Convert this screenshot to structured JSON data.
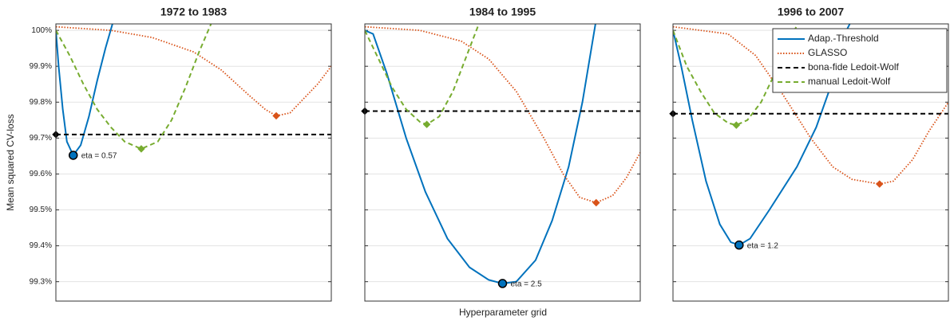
{
  "figure": {
    "ylabel": "Mean squared CV-loss",
    "xlabel": "Hyperparameter grid"
  },
  "chart_data": [
    {
      "type": "line",
      "title": "1972 to 1983",
      "xlim": [
        0,
        100
      ],
      "ylim": [
        99.246,
        100.018
      ],
      "yticks": [
        {
          "value": 99.3,
          "label": "99.3%"
        },
        {
          "value": 99.4,
          "label": "99.4%"
        },
        {
          "value": 99.5,
          "label": "99.5%"
        },
        {
          "value": 99.6,
          "label": "99.6%"
        },
        {
          "value": 99.7,
          "label": "99.7%"
        },
        {
          "value": 99.8,
          "label": "99.8%"
        },
        {
          "value": 99.9,
          "label": "99.9%"
        },
        {
          "value": 100,
          "label": "100%"
        }
      ],
      "grid": true,
      "series": [
        {
          "name": "Adap.-Threshold",
          "color": "#0072bd",
          "style": "solid",
          "x": [
            0,
            1,
            2.5,
            4,
            6.3,
            9,
            12,
            15,
            18,
            21
          ],
          "values": [
            100.0,
            99.9,
            99.78,
            99.69,
            99.652,
            99.68,
            99.76,
            99.86,
            99.95,
            100.03
          ]
        },
        {
          "name": "GLASSO",
          "color": "#d95319",
          "style": "dotted",
          "x": [
            0,
            20,
            35,
            50,
            60,
            70,
            76,
            80,
            85,
            90,
            95,
            100
          ],
          "values": [
            100.01,
            100.0,
            99.98,
            99.94,
            99.89,
            99.82,
            99.78,
            99.762,
            99.77,
            99.81,
            99.85,
            99.9
          ],
          "optimum_x": 80,
          "optimum": 99.762
        },
        {
          "name": "bona-fide Ledoit-Wolf",
          "color": "#000000",
          "style": "dashed",
          "value": 99.71
        },
        {
          "name": "manual Ledoit-Wolf",
          "color": "#77ac30",
          "style": "dashed",
          "x": [
            0,
            5,
            10,
            15,
            20,
            25,
            31,
            37,
            42,
            47,
            52,
            57
          ],
          "values": [
            100.0,
            99.93,
            99.85,
            99.78,
            99.73,
            99.69,
            99.67,
            99.69,
            99.75,
            99.84,
            99.94,
            100.03
          ],
          "optimum_x": 31,
          "optimum": 99.67
        }
      ],
      "annotation": {
        "text": "eta = 0.57",
        "x": 6.3,
        "y": 99.652
      }
    },
    {
      "type": "line",
      "title": "1984 to 1995",
      "xlim": [
        0,
        100
      ],
      "ylim": [
        99.246,
        100.018
      ],
      "yticks": [
        99.3,
        99.4,
        99.5,
        99.6,
        99.7,
        99.8,
        99.9,
        100
      ],
      "grid": true,
      "series": [
        {
          "name": "Adap.-Threshold",
          "color": "#0072bd",
          "style": "solid",
          "x": [
            0,
            3,
            8,
            15,
            22,
            30,
            38,
            45,
            50,
            55,
            62,
            68,
            74,
            79,
            84
          ],
          "values": [
            100.0,
            99.99,
            99.88,
            99.7,
            99.55,
            99.42,
            99.34,
            99.305,
            99.295,
            99.3,
            99.36,
            99.47,
            99.62,
            99.8,
            100.03
          ]
        },
        {
          "name": "GLASSO",
          "color": "#d95319",
          "style": "dotted",
          "x": [
            0,
            20,
            35,
            45,
            55,
            65,
            72,
            78,
            84,
            90,
            95,
            100
          ],
          "values": [
            100.01,
            100.0,
            99.97,
            99.92,
            99.83,
            99.7,
            99.6,
            99.535,
            99.52,
            99.54,
            99.59,
            99.66
          ],
          "optimum_x": 84,
          "optimum": 99.52
        },
        {
          "name": "bona-fide Ledoit-Wolf",
          "color": "#000000",
          "style": "dashed",
          "value": 99.775
        },
        {
          "name": "manual Ledoit-Wolf",
          "color": "#77ac30",
          "style": "dashed",
          "x": [
            0,
            5,
            10,
            15,
            20,
            22.5,
            27,
            32,
            37,
            42
          ],
          "values": [
            100.0,
            99.92,
            99.84,
            99.78,
            99.745,
            99.738,
            99.76,
            99.83,
            99.93,
            100.03
          ],
          "optimum_x": 22.5,
          "optimum": 99.738
        }
      ],
      "annotation": {
        "text": "eta = 2.5",
        "x": 50,
        "y": 99.295
      }
    },
    {
      "type": "line",
      "title": "1996 to 2007",
      "xlim": [
        0,
        100
      ],
      "ylim": [
        99.246,
        100.018
      ],
      "yticks": [
        99.3,
        99.4,
        99.5,
        99.6,
        99.7,
        99.8,
        99.9,
        100
      ],
      "grid": true,
      "legend": "upper right",
      "series": [
        {
          "name": "Adap.-Threshold",
          "color": "#0072bd",
          "style": "solid",
          "x": [
            0,
            3,
            7,
            12,
            17,
            21,
            24,
            28,
            35,
            45,
            52,
            58,
            63,
            65
          ],
          "values": [
            100.0,
            99.9,
            99.75,
            99.58,
            99.46,
            99.41,
            99.402,
            99.42,
            99.5,
            99.62,
            99.73,
            99.86,
            100.0,
            100.03
          ]
        },
        {
          "name": "GLASSO",
          "color": "#d95319",
          "style": "dotted",
          "x": [
            0,
            20,
            30,
            40,
            50,
            58,
            65,
            75,
            80,
            87,
            93,
            100
          ],
          "values": [
            100.01,
            99.99,
            99.93,
            99.82,
            99.7,
            99.62,
            99.585,
            99.572,
            99.58,
            99.64,
            99.72,
            99.8
          ],
          "optimum_x": 75,
          "optimum": 99.572
        },
        {
          "name": "bona-fide Ledoit-Wolf",
          "color": "#000000",
          "style": "dashed",
          "value": 99.768
        },
        {
          "name": "manual Ledoit-Wolf",
          "color": "#77ac30",
          "style": "dashed",
          "x": [
            0,
            5,
            10,
            15,
            20,
            23,
            27,
            32,
            37,
            41,
            46
          ],
          "values": [
            100.0,
            99.9,
            99.83,
            99.77,
            99.742,
            99.736,
            99.75,
            99.8,
            99.88,
            99.95,
            100.03
          ],
          "optimum_x": 23,
          "optimum": 99.736
        }
      ],
      "annotation": {
        "text": "eta = 1.2",
        "x": 24,
        "y": 99.402
      }
    }
  ]
}
